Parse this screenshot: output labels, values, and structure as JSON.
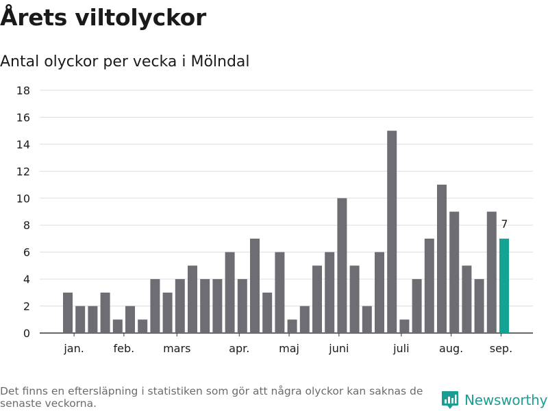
{
  "header": {
    "title": "Årets viltolyckor",
    "subtitle": "Antal olyckor per vecka i Mölndal"
  },
  "footer": {
    "note": "Det finns en eftersläpning i statistiken som gör att några olyckor kan saknas de senaste veckorna.",
    "brand": "Newsworthy"
  },
  "colors": {
    "bar": "#6e6d73",
    "highlight": "#15a393",
    "grid": "#dddddd",
    "axis": "#333333",
    "brand": "#1a9e94"
  },
  "chart_data": {
    "type": "bar",
    "title": "Årets viltolyckor",
    "subtitle": "Antal olyckor per vecka i Mölndal",
    "xlabel": "",
    "ylabel": "",
    "ylim": [
      0,
      18
    ],
    "yticks": [
      0,
      2,
      4,
      6,
      8,
      10,
      12,
      14,
      16,
      18
    ],
    "grid": true,
    "values": [
      3,
      2,
      2,
      3,
      1,
      2,
      1,
      4,
      3,
      4,
      5,
      4,
      4,
      6,
      4,
      7,
      3,
      6,
      1,
      2,
      5,
      6,
      10,
      5,
      2,
      6,
      15,
      1,
      4,
      7,
      11,
      9,
      5,
      4,
      9,
      7
    ],
    "highlight_last": true,
    "last_label": "7",
    "month_labels": [
      {
        "label": "jan.",
        "bar": 0.5
      },
      {
        "label": "feb.",
        "bar": 4.5
      },
      {
        "label": "mars",
        "bar": 8.75
      },
      {
        "label": "apr.",
        "bar": 13.75
      },
      {
        "label": "maj",
        "bar": 17.75
      },
      {
        "label": "juni",
        "bar": 21.75
      },
      {
        "label": "juli",
        "bar": 26.75
      },
      {
        "label": "aug.",
        "bar": 30.75
      },
      {
        "label": "sep.",
        "bar": 34.75
      }
    ]
  }
}
